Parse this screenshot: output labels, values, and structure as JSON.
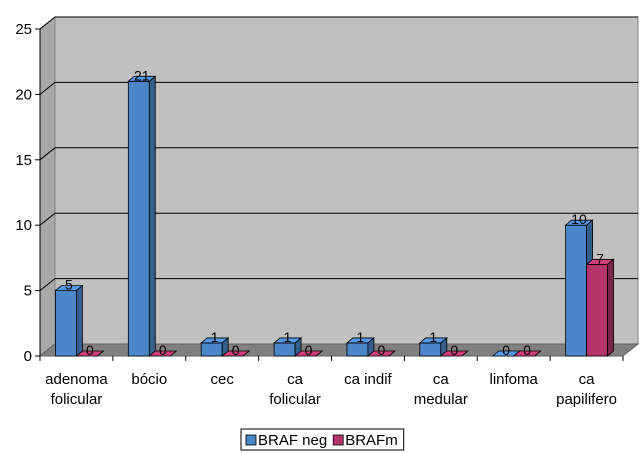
{
  "chart_data": {
    "type": "bar",
    "title": "",
    "xlabel": "",
    "ylabel": "",
    "ylim": [
      0,
      25
    ],
    "yticks": [
      0,
      5,
      10,
      15,
      20,
      25
    ],
    "grid": true,
    "style": "3d-clustered-column",
    "legend_position": "bottom",
    "categories": [
      [
        "adenoma",
        "folicular"
      ],
      [
        "bócio"
      ],
      [
        "cec"
      ],
      [
        "ca",
        "folicular"
      ],
      [
        "ca indif"
      ],
      [
        "ca",
        "medular"
      ],
      [
        "linfoma"
      ],
      [
        "ca",
        "papilifero"
      ]
    ],
    "series": [
      {
        "name": "BRAF neg",
        "color": "#4a86c8",
        "values": [
          5,
          21,
          1,
          1,
          1,
          1,
          0,
          10
        ]
      },
      {
        "name": "BRAFm",
        "color": "#b5346c",
        "values": [
          0,
          0,
          0,
          0,
          0,
          0,
          0,
          7
        ]
      }
    ]
  }
}
